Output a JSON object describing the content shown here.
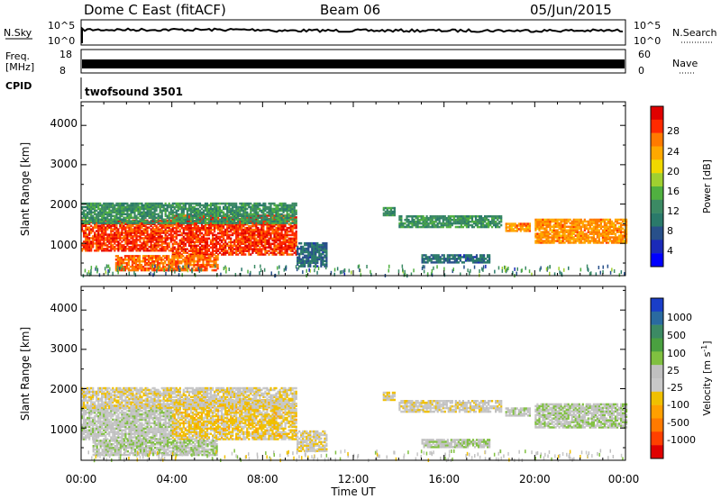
{
  "header": {
    "station": "Dome C East (fitACF)",
    "beam": "Beam 06",
    "date": "05/Jun/2015"
  },
  "strip_labels": {
    "nsky": "N.Sky",
    "nsky_ticks": [
      "10^5",
      "10^0"
    ],
    "nsearch": "N.Search",
    "nsearch_ticks": [
      "10^5",
      "10^0"
    ],
    "freq_line1": "Freq.",
    "freq_line2": "[MHz]",
    "freq_ticks": [
      "18",
      "8"
    ],
    "nave": "Nave",
    "nave_ticks": [
      "60",
      "0"
    ],
    "cpid": "CPID",
    "cpid_value": "twofsound 3501"
  },
  "axes": {
    "ylabel": "Slant Range [km]",
    "xlabel": "Time UT",
    "y_ticks": [
      "4000",
      "3000",
      "2000",
      "1000"
    ],
    "x_ticks": [
      "00:00",
      "04:00",
      "08:00",
      "12:00",
      "16:00",
      "20:00",
      "00:00"
    ]
  },
  "power_scale": {
    "label": "Power [dB]",
    "ticks": [
      "28",
      "24",
      "20",
      "16",
      "12",
      "8",
      "4"
    ],
    "colors": [
      "#e00000",
      "#ff2a00",
      "#ff7a00",
      "#ffa800",
      "#f0d800",
      "#a0d030",
      "#50b040",
      "#3c8a64",
      "#2a7a6a",
      "#28508a",
      "#1a2ab8",
      "#0000ff"
    ]
  },
  "velocity_scale": {
    "label": "Velocity [m s",
    "label_sup": "-1",
    "label_end": "]",
    "ticks": [
      "1000",
      "500",
      "100",
      "25",
      "-25",
      "-100",
      "-500",
      "-1000"
    ],
    "colors": [
      "#1a3ec8",
      "#2a6aa0",
      "#3c8a64",
      "#4aa040",
      "#80c040",
      "#c0c0c0",
      "#c8c8c8",
      "#f0c000",
      "#ffa000",
      "#ff7a00",
      "#ff4000",
      "#e00000"
    ]
  },
  "chart_data": [
    {
      "type": "heatmap",
      "title": "Power",
      "x_range_hours": [
        0,
        24
      ],
      "y_range_km": [
        180,
        4600
      ],
      "colorbar_label": "Power [dB]",
      "colorbar_range": [
        0,
        32
      ],
      "echo_regions": [
        {
          "t0": 0.0,
          "t1": 4.0,
          "r0": 800,
          "r1": 1600,
          "level": 28
        },
        {
          "t0": 4.0,
          "t1": 9.5,
          "r0": 700,
          "r1": 1700,
          "level": 28
        },
        {
          "t0": 1.5,
          "t1": 6.0,
          "r0": 300,
          "r1": 700,
          "level": 26
        },
        {
          "t0": 0.0,
          "t1": 9.5,
          "r0": 1500,
          "r1": 2000,
          "level": 12
        },
        {
          "t0": 9.5,
          "t1": 10.8,
          "r0": 400,
          "r1": 1000,
          "level": 8
        },
        {
          "t0": 13.3,
          "t1": 13.8,
          "r0": 1700,
          "r1": 1900,
          "level": 12
        },
        {
          "t0": 14.0,
          "t1": 18.5,
          "r0": 1400,
          "r1": 1700,
          "level": 12
        },
        {
          "t0": 18.7,
          "t1": 19.8,
          "r0": 1300,
          "r1": 1500,
          "level": 24
        },
        {
          "t0": 20.0,
          "t1": 24.0,
          "r0": 1000,
          "r1": 1600,
          "level": 24
        },
        {
          "t0": 15.0,
          "t1": 18.0,
          "r0": 500,
          "r1": 700,
          "level": 8
        }
      ]
    },
    {
      "type": "heatmap",
      "title": "Velocity",
      "x_range_hours": [
        0,
        24
      ],
      "y_range_km": [
        180,
        4600
      ],
      "colorbar_label": "Velocity [m s-1]",
      "colorbar_range": [
        -1000,
        1000
      ],
      "echo_regions": [
        {
          "t0": 0.0,
          "t1": 4.0,
          "r0": 700,
          "r1": 1600,
          "level": 50
        },
        {
          "t0": 4.0,
          "t1": 9.5,
          "r0": 700,
          "r1": 1700,
          "level": -200
        },
        {
          "t0": 0.5,
          "t1": 6.0,
          "r0": 300,
          "r1": 700,
          "level": 100
        },
        {
          "t0": 0.0,
          "t1": 9.5,
          "r0": 1500,
          "r1": 2000,
          "level": -100
        },
        {
          "t0": 9.5,
          "t1": 10.8,
          "r0": 400,
          "r1": 900,
          "level": -100
        },
        {
          "t0": 13.3,
          "t1": 13.8,
          "r0": 1700,
          "r1": 1900,
          "level": -100
        },
        {
          "t0": 14.0,
          "t1": 18.5,
          "r0": 1400,
          "r1": 1700,
          "level": -50
        },
        {
          "t0": 18.7,
          "t1": 19.8,
          "r0": 1300,
          "r1": 1500,
          "level": 50
        },
        {
          "t0": 20.0,
          "t1": 24.0,
          "r0": 1000,
          "r1": 1600,
          "level": 100
        },
        {
          "t0": 15.0,
          "t1": 18.0,
          "r0": 500,
          "r1": 700,
          "level": 100
        }
      ]
    }
  ]
}
